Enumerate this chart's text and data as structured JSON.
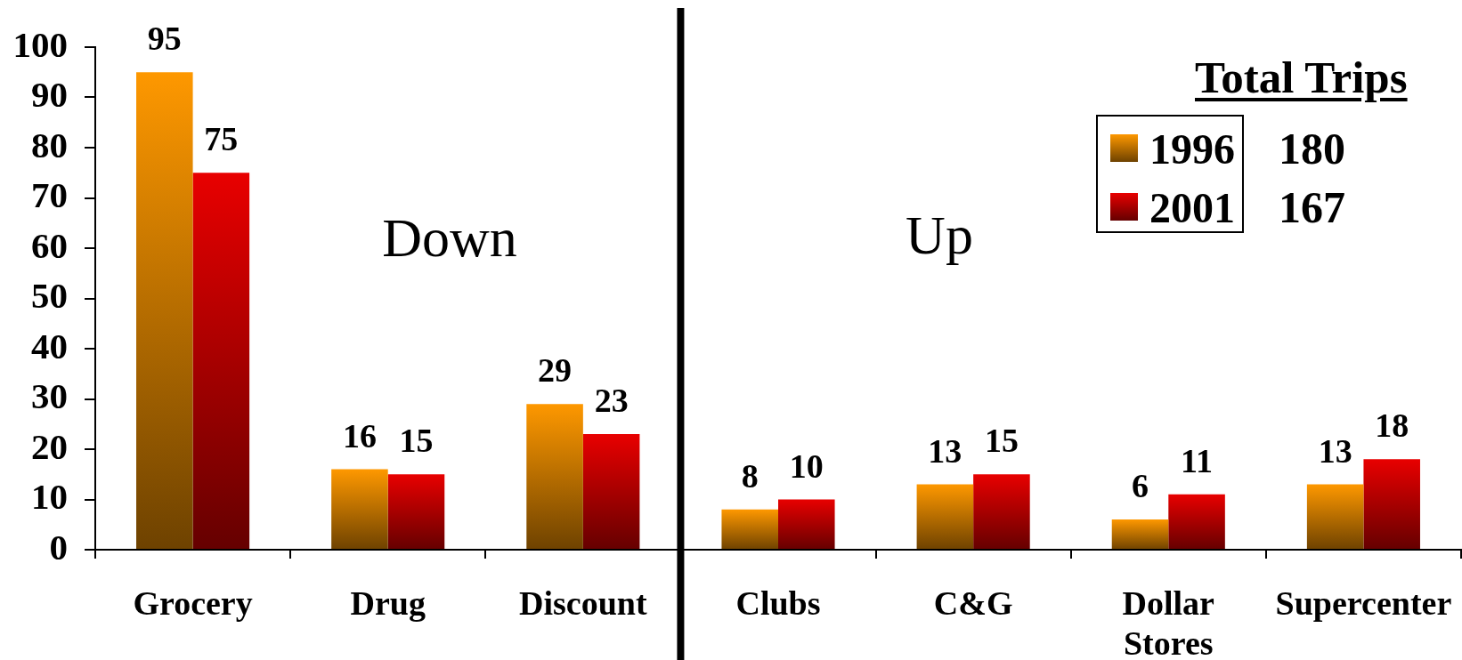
{
  "chart_data": {
    "type": "bar",
    "categories": [
      "Grocery",
      "Drug",
      "Discount",
      "Clubs",
      "C&G",
      "Dollar Stores",
      "Supercenter"
    ],
    "series": [
      {
        "name": "1996",
        "color": "#b86e00",
        "values": [
          95,
          16,
          29,
          8,
          13,
          6,
          13
        ]
      },
      {
        "name": "2001",
        "color": "#a80000",
        "values": [
          75,
          15,
          23,
          10,
          15,
          11,
          18
        ]
      }
    ],
    "ylim": [
      0,
      100
    ],
    "yticks": [
      0,
      10,
      20,
      30,
      40,
      50,
      60,
      70,
      80,
      90,
      100
    ],
    "legend": "top right",
    "legend_title": "Total Trips",
    "data_labels": true,
    "annotations": [
      "Down",
      "Up",
      "180",
      "167"
    ]
  }
}
